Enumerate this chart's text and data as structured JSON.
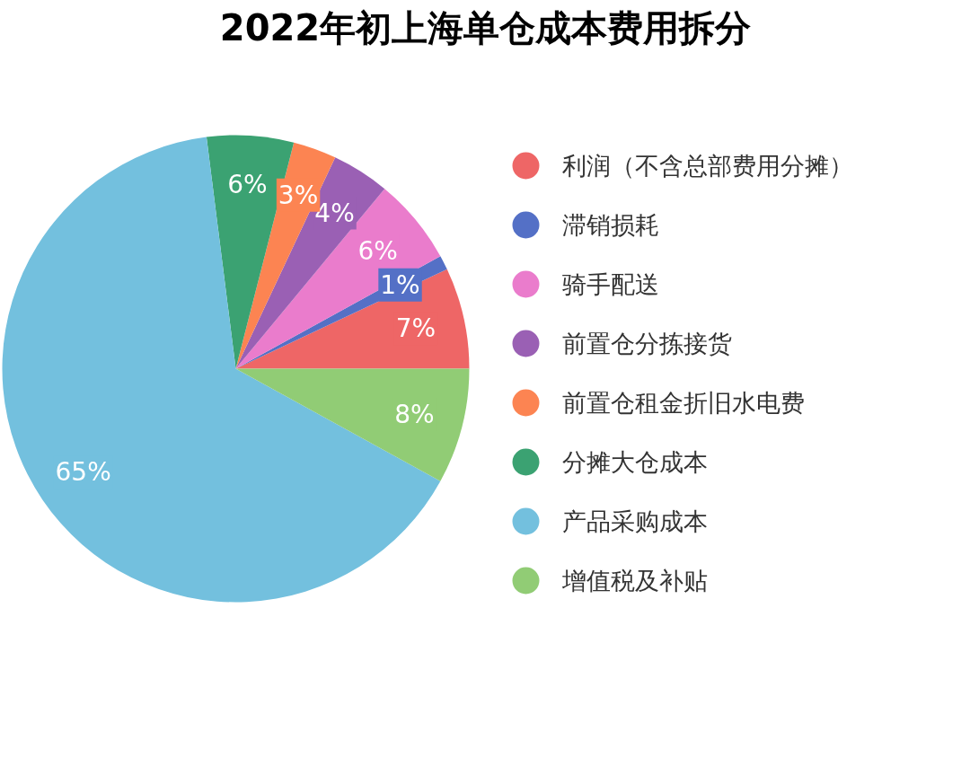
{
  "chart_data": {
    "type": "pie",
    "title": "2022年初上海单仓成本费用拆分",
    "categories": [
      "利润（不含总部费用分摊）",
      "滞销损耗",
      "骑手配送",
      "前置仓分拣接货",
      "前置仓租金折旧水电费",
      "分摊大仓成本",
      "产品采购成本",
      "增值税及补贴"
    ],
    "values": [
      7,
      1,
      6,
      4,
      3,
      6,
      65,
      8
    ],
    "colors": [
      "#ee6666",
      "#5470c6",
      "#ea7ccc",
      "#9a60b4",
      "#fc8452",
      "#3ba272",
      "#73c0de",
      "#91cc75"
    ],
    "value_labels": [
      "7%",
      "1%",
      "6%",
      "4%",
      "3%",
      "6%",
      "65%",
      "8%"
    ],
    "legend": "right"
  }
}
